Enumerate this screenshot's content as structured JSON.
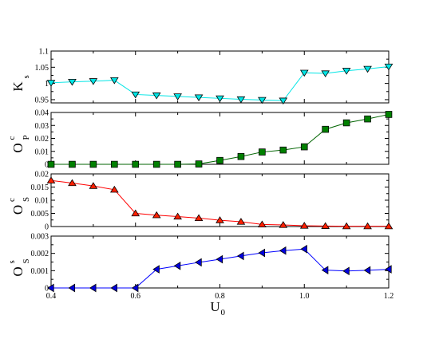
{
  "chart_data": [
    {
      "type": "line",
      "panel": "Ks",
      "ylabel": {
        "base": "K",
        "sub": "s",
        "sup": ""
      },
      "ylim": [
        0.94,
        1.1
      ],
      "yticks": [
        0.95,
        1,
        1.05,
        1.1
      ],
      "ytick_labels": [
        "0.95",
        "1",
        "1.05",
        "1.1"
      ],
      "marker": "triangle-down",
      "line_color": "#00e5e5",
      "marker_fill": "#00e5e5",
      "x": [
        0.4,
        0.45,
        0.5,
        0.55,
        0.6,
        0.65,
        0.7,
        0.75,
        0.8,
        0.85,
        0.9,
        0.95,
        1.0,
        1.05,
        1.1,
        1.15,
        1.2
      ],
      "y": [
        1.002,
        1.005,
        1.007,
        1.01,
        0.966,
        0.963,
        0.96,
        0.957,
        0.954,
        0.951,
        0.949,
        0.947,
        1.033,
        1.031,
        1.039,
        1.045,
        1.052
      ]
    },
    {
      "type": "line",
      "panel": "OPc",
      "ylabel": {
        "base": "O",
        "sub": "P",
        "sup": "c"
      },
      "ylim": [
        0,
        0.04
      ],
      "yticks": [
        0,
        0.01,
        0.02,
        0.03,
        0.04
      ],
      "ytick_labels": [
        "0",
        "0.01",
        "0.02",
        "0.03",
        "0.04"
      ],
      "marker": "square",
      "line_color": "#006400",
      "marker_fill": "#008000",
      "x": [
        0.4,
        0.45,
        0.5,
        0.55,
        0.6,
        0.65,
        0.7,
        0.75,
        0.8,
        0.85,
        0.9,
        0.95,
        1.0,
        1.05,
        1.1,
        1.15,
        1.2
      ],
      "y": [
        0,
        0,
        0,
        0,
        0,
        0,
        0,
        0.0003,
        0.003,
        0.006,
        0.0095,
        0.011,
        0.0135,
        0.027,
        0.032,
        0.035,
        0.0385
      ]
    },
    {
      "type": "line",
      "panel": "OSc",
      "ylabel": {
        "base": "O",
        "sub": "S",
        "sup": "c"
      },
      "ylim": [
        0,
        0.02
      ],
      "yticks": [
        0,
        0.005,
        0.01,
        0.015,
        0.02
      ],
      "ytick_labels": [
        "0",
        "0.005",
        "0.01",
        "0.015",
        "0.02"
      ],
      "marker": "triangle-up",
      "line_color": "#ff0000",
      "marker_fill": "#ff2000",
      "x": [
        0.4,
        0.45,
        0.5,
        0.55,
        0.6,
        0.65,
        0.7,
        0.75,
        0.8,
        0.85,
        0.9,
        0.95,
        1.0,
        1.05,
        1.1,
        1.15,
        1.2
      ],
      "y": [
        0.0175,
        0.0165,
        0.0154,
        0.014,
        0.005,
        0.0043,
        0.0038,
        0.0032,
        0.0024,
        0.0018,
        0.0008,
        0.0006,
        0.0003,
        0.0002,
        0.0001,
        0.0001,
        0.0001
      ]
    },
    {
      "type": "line",
      "panel": "OSs",
      "ylabel": {
        "base": "O",
        "sub": "S",
        "sup": "s"
      },
      "xlabel": {
        "base": "U",
        "sub": "0"
      },
      "ylim": [
        0,
        0.003
      ],
      "yticks": [
        0,
        0.001,
        0.002,
        0.003
      ],
      "ytick_labels": [
        "0",
        "0.001",
        "0.002",
        "0.003"
      ],
      "marker": "triangle-left",
      "line_color": "#0000ff",
      "marker_fill": "#0000e0",
      "x": [
        0.4,
        0.45,
        0.5,
        0.55,
        0.6,
        0.65,
        0.7,
        0.75,
        0.8,
        0.85,
        0.9,
        0.95,
        1.0,
        1.05,
        1.1,
        1.15,
        1.2
      ],
      "y": [
        0,
        0,
        0,
        0,
        0,
        0.00108,
        0.00128,
        0.00148,
        0.00166,
        0.00185,
        0.00203,
        0.00216,
        0.00225,
        0.00103,
        0.00098,
        0.00102,
        0.00108
      ]
    }
  ],
  "x_axis": {
    "xlim": [
      0.4,
      1.2
    ],
    "xticks": [
      0.4,
      0.6,
      0.8,
      1.0,
      1.2
    ],
    "xtick_labels": [
      "0.4",
      "0.6",
      "0.8",
      "1.0",
      "1.2"
    ]
  }
}
